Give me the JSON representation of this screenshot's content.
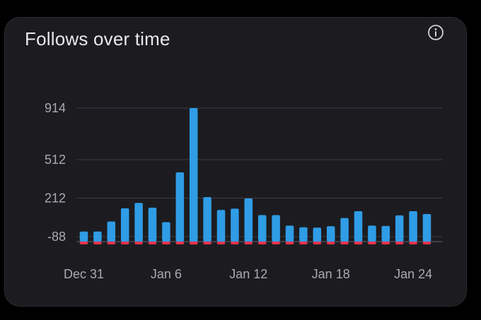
{
  "card": {
    "title": "Follows over time",
    "info_icon": "info-icon"
  },
  "colors": {
    "positive": "#2f9ce6",
    "negative": "#e8344e",
    "grid": "#3a3a42",
    "text": "#a9a9b2"
  },
  "chart_data": {
    "type": "bar",
    "title": "Follows over time",
    "x": [
      "Dec 31",
      "Jan 1",
      "Jan 2",
      "Jan 3",
      "Jan 4",
      "Jan 5",
      "Jan 6",
      "Jan 7",
      "Jan 8",
      "Jan 9",
      "Jan 10",
      "Jan 11",
      "Jan 12",
      "Jan 13",
      "Jan 14",
      "Jan 15",
      "Jan 16",
      "Jan 17",
      "Jan 18",
      "Jan 19",
      "Jan 20",
      "Jan 21",
      "Jan 22",
      "Jan 23",
      "Jan 24",
      "Jan 25"
    ],
    "x_tick_labels": [
      "Dec 31",
      "Jan 6",
      "Jan 12",
      "Jan 18",
      "Jan 24"
    ],
    "y_tick_labels": [
      "914",
      "512",
      "212",
      "-88"
    ],
    "y_ticks": [
      914,
      512,
      212,
      -88
    ],
    "series": [
      {
        "values": [
          -48,
          -48,
          30,
          133,
          175,
          138,
          25,
          413,
          914,
          220,
          120,
          130,
          210,
          80,
          80,
          -2,
          -15,
          -18,
          -7,
          57,
          110,
          -2,
          -5,
          78,
          110,
          88
        ]
      },
      {
        "values": [
          -20,
          -20,
          -15,
          -15,
          -15,
          -15,
          -20,
          -30,
          -45,
          -40,
          -30,
          -30,
          -35,
          -35,
          -35,
          -25,
          -25,
          -25,
          -30,
          -25,
          -35,
          -30,
          -25,
          -30,
          -30,
          -30
        ]
      }
    ]
  }
}
